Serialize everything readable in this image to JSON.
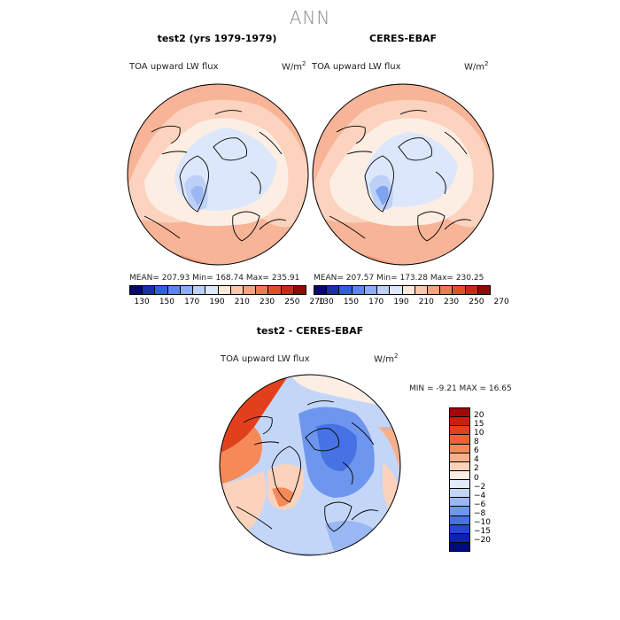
{
  "figure_title": "ANN",
  "panels": [
    {
      "title": "test2 (yrs 1979-1979)",
      "variable": "TOA upward LW flux",
      "units": "W/m",
      "units_exp": "2",
      "stats": "MEAN= 207.93   Min= 168.74   Max= 235.91"
    },
    {
      "title": "CERES-EBAF",
      "variable": "TOA upward LW flux",
      "units": "W/m",
      "units_exp": "2",
      "stats": "MEAN= 207.57   Min= 173.28   Max= 230.25"
    },
    {
      "title": "test2 - CERES-EBAF",
      "variable": "TOA upward LW flux",
      "units": "W/m",
      "units_exp": "2",
      "stats": "MIN =    -9.21  MAX =   16.65"
    }
  ],
  "colorbar_abs": {
    "labels": [
      "130",
      "150",
      "170",
      "190",
      "210",
      "230",
      "250",
      "270"
    ],
    "colors": [
      "#08086b",
      "#1a2fb0",
      "#2f5fe0",
      "#5a86ee",
      "#8cacf4",
      "#bcd0fa",
      "#dde8fb",
      "#fde8da",
      "#fbc8ae",
      "#f6a37e",
      "#ef7a52",
      "#e04f2e",
      "#c62a15",
      "#900b05"
    ]
  },
  "colorbar_diff": {
    "labels": [
      "20",
      "15",
      "10",
      "8",
      "6",
      "4",
      "2",
      "0",
      "−2",
      "−4",
      "−6",
      "−8",
      "−10",
      "−15",
      "−20"
    ],
    "colors": [
      "#a20808",
      "#c81f10",
      "#e2401c",
      "#f0622c",
      "#f58a58",
      "#f8b08c",
      "#fbd2bc",
      "#fdeee4",
      "#e3ecfb",
      "#c4d6f8",
      "#9ab8f4",
      "#6e96ee",
      "#4672e4",
      "#2448d0",
      "#0c22b2",
      "#000a80"
    ]
  }
}
